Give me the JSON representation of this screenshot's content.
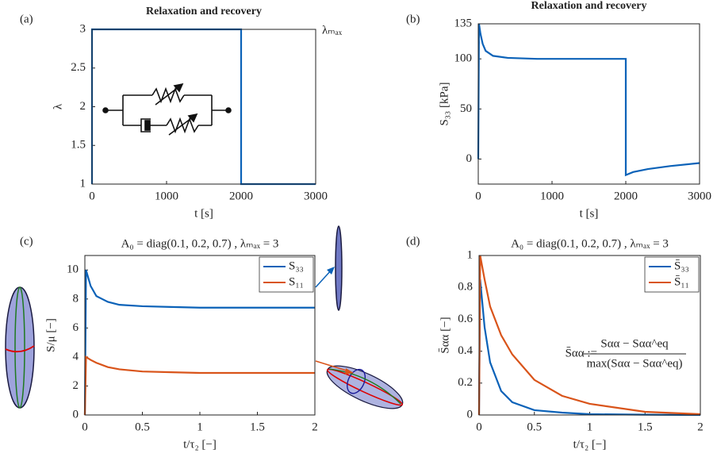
{
  "chart_data": [
    {
      "type": "line",
      "panel": "(a)",
      "title": "Relaxation and recovery",
      "x_label": "t   [s]",
      "y_label": "λ",
      "x": [
        0,
        0,
        2000,
        2000,
        3000
      ],
      "values": [
        1,
        3,
        3,
        1,
        1
      ],
      "color": "#0b62b8",
      "xlim": [
        0,
        3000
      ],
      "ylim": [
        1,
        3
      ],
      "xticks": [
        0,
        1000,
        2000,
        3000
      ],
      "yticks": [
        1,
        1.5,
        2,
        2.5,
        3
      ],
      "annotation": "λₘₐₓ"
    },
    {
      "type": "line",
      "panel": "(b)",
      "title": "Relaxation and recovery",
      "x_label": "t   [s]",
      "y_label": "S₃₃   [kPa]",
      "x": [
        0,
        10,
        30,
        60,
        100,
        200,
        400,
        800,
        1500,
        2000,
        2000,
        2100,
        2300,
        2600,
        3000
      ],
      "values": [
        0,
        135,
        125,
        115,
        108,
        103,
        101,
        100,
        100,
        100,
        -16,
        -13,
        -10,
        -7,
        -4
      ],
      "color": "#0b62b8",
      "xlim": [
        0,
        3000
      ],
      "ylim": [
        -25,
        135
      ],
      "xticks": [
        0,
        1000,
        2000,
        3000
      ],
      "yticks": [
        0,
        50,
        100,
        135
      ]
    },
    {
      "type": "line",
      "panel": "(c)",
      "title": "A₀ = diag(0.1, 0.2, 0.7) ,   λₘₐₓ = 3",
      "x_label": "t/τ₂   [−]",
      "y_label": "S/μ   [−]",
      "x": [
        0,
        0.01,
        0.05,
        0.1,
        0.2,
        0.3,
        0.5,
        0.75,
        1,
        1.5,
        2
      ],
      "series": [
        {
          "name": "S₃₃",
          "color": "#0b62b8",
          "values": [
            0,
            10,
            8.9,
            8.2,
            7.8,
            7.6,
            7.5,
            7.45,
            7.4,
            7.4,
            7.4
          ]
        },
        {
          "name": "S₁₁",
          "color": "#d9541a",
          "values": [
            0,
            4,
            3.8,
            3.6,
            3.3,
            3.15,
            3.0,
            2.95,
            2.9,
            2.9,
            2.9
          ]
        }
      ],
      "xlim": [
        0,
        2
      ],
      "ylim": [
        0,
        11
      ],
      "xticks": [
        0,
        0.5,
        1,
        1.5,
        2
      ],
      "yticks": [
        0,
        2,
        4,
        6,
        8,
        10
      ],
      "legend": "upper right"
    },
    {
      "type": "line",
      "panel": "(d)",
      "title": "A₀ = diag(0.1, 0.2, 0.7) ,   λₘₐₓ = 3",
      "x_label": "t/τ₂   [−]",
      "y_label": "S̄αα   [−]",
      "x": [
        0,
        0.01,
        0.05,
        0.1,
        0.2,
        0.3,
        0.5,
        0.75,
        1,
        1.5,
        2
      ],
      "series": [
        {
          "name": "S̄₃₃",
          "color": "#0b62b8",
          "values": [
            0,
            0.85,
            0.55,
            0.33,
            0.15,
            0.08,
            0.03,
            0.015,
            0.005,
            0.002,
            0
          ]
        },
        {
          "name": "S̄₁₁",
          "color": "#d9541a",
          "values": [
            0,
            1,
            0.85,
            0.68,
            0.5,
            0.38,
            0.22,
            0.12,
            0.07,
            0.02,
            0.005
          ]
        }
      ],
      "xlim": [
        0,
        2
      ],
      "ylim": [
        0,
        1
      ],
      "xticks": [
        0,
        0.5,
        1,
        1.5,
        2
      ],
      "yticks": [
        0,
        0.2,
        0.4,
        0.6,
        0.8,
        1
      ],
      "legend": "upper right",
      "formula": {
        "lhs": "S̄αα :=",
        "numerator": "Sαα − Sαα^eq",
        "denominator": "max(Sαα − Sαα^eq)"
      }
    }
  ]
}
